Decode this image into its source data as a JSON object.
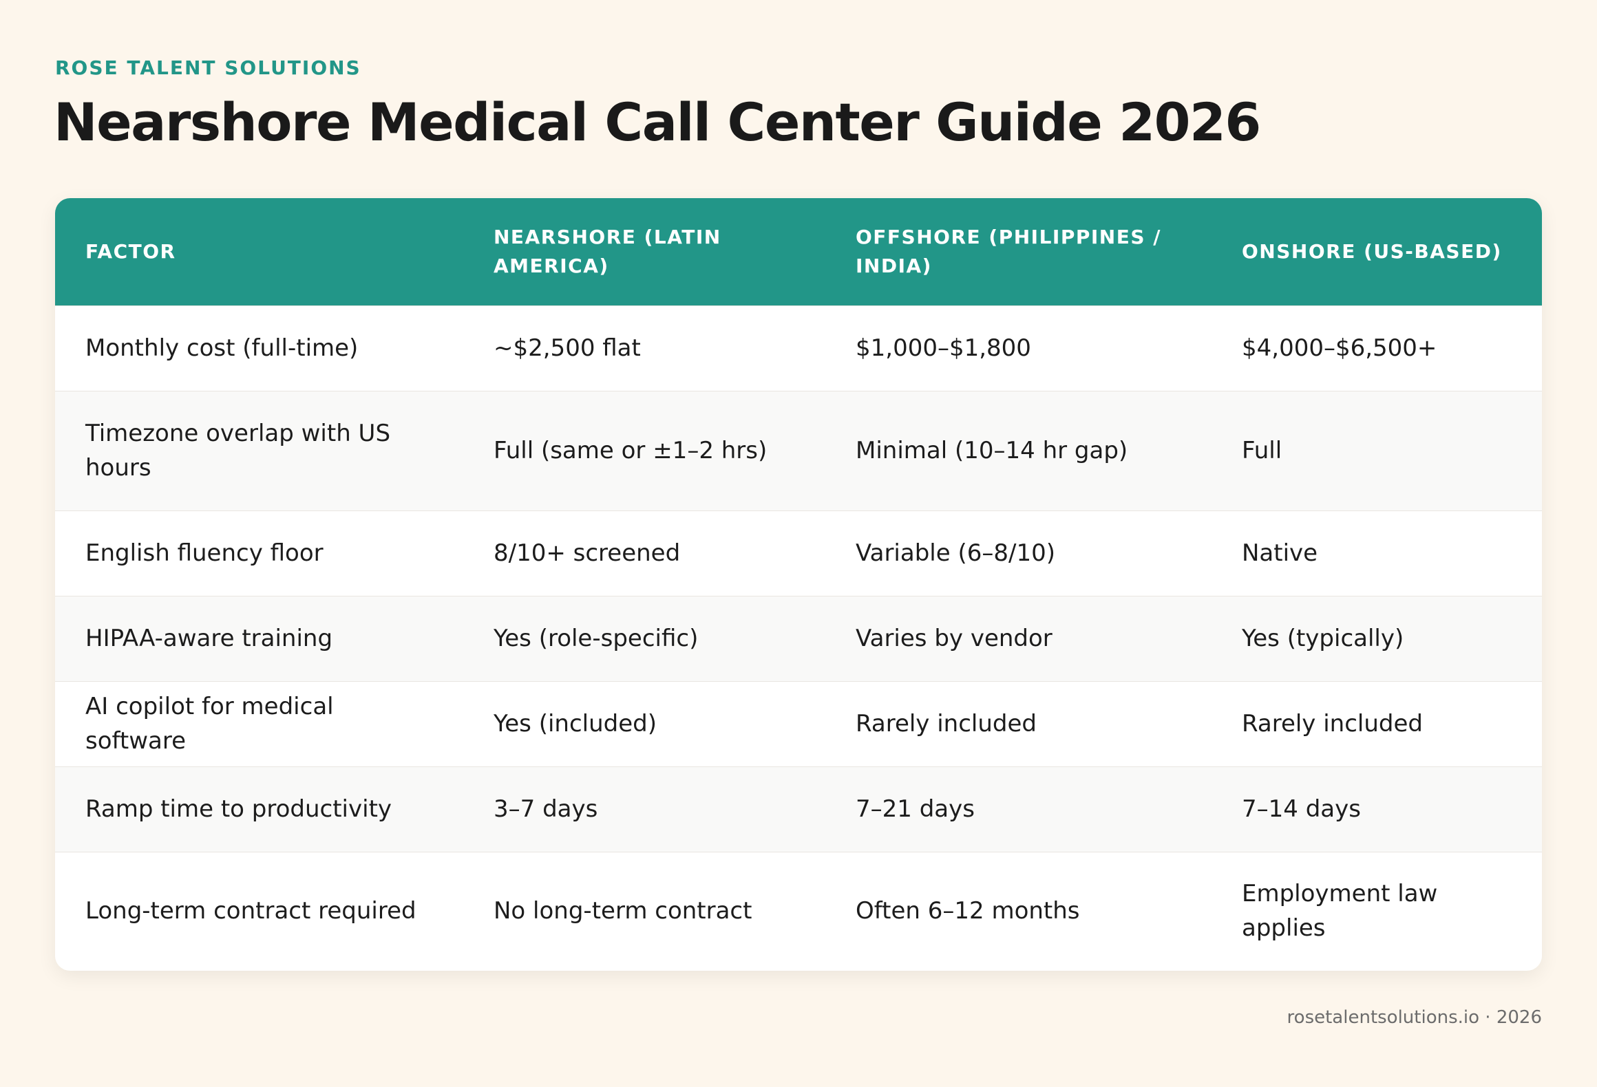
{
  "header": {
    "brand": "ROSE TALENT SOLUTIONS",
    "title": "Nearshore Medical Call Center Guide 2026"
  },
  "table": {
    "columns": [
      "FACTOR",
      "NEARSHORE (LATIN AMERICA)",
      "OFFSHORE (PHILIPPINES / INDIA)",
      "ONSHORE (US-BASED)"
    ],
    "rows": [
      [
        "Monthly cost (full-time)",
        "~$2,500 flat",
        "$1,000–$1,800",
        "$4,000–$6,500+"
      ],
      [
        "Timezone overlap with US hours",
        "Full (same or ±1–2 hrs)",
        "Minimal (10–14 hr gap)",
        "Full"
      ],
      [
        "English fluency floor",
        "8/10+ screened",
        "Variable (6–8/10)",
        "Native"
      ],
      [
        "HIPAA-aware training",
        "Yes (role-specific)",
        "Varies by vendor",
        "Yes (typically)"
      ],
      [
        "AI copilot for medical software",
        "Yes (included)",
        "Rarely included",
        "Rarely included"
      ],
      [
        "Ramp time to productivity",
        "3–7 days",
        "7–21 days",
        "7–14 days"
      ],
      [
        "Long-term contract required",
        "No long-term contract",
        "Often 6–12 months",
        "Employment law applies"
      ]
    ]
  },
  "footer": {
    "text": "rosetalentsolutions.io · 2026"
  },
  "colors": {
    "accent": "#229688",
    "background": "#fdf6ec",
    "row_alt": "#f9f9f8"
  }
}
